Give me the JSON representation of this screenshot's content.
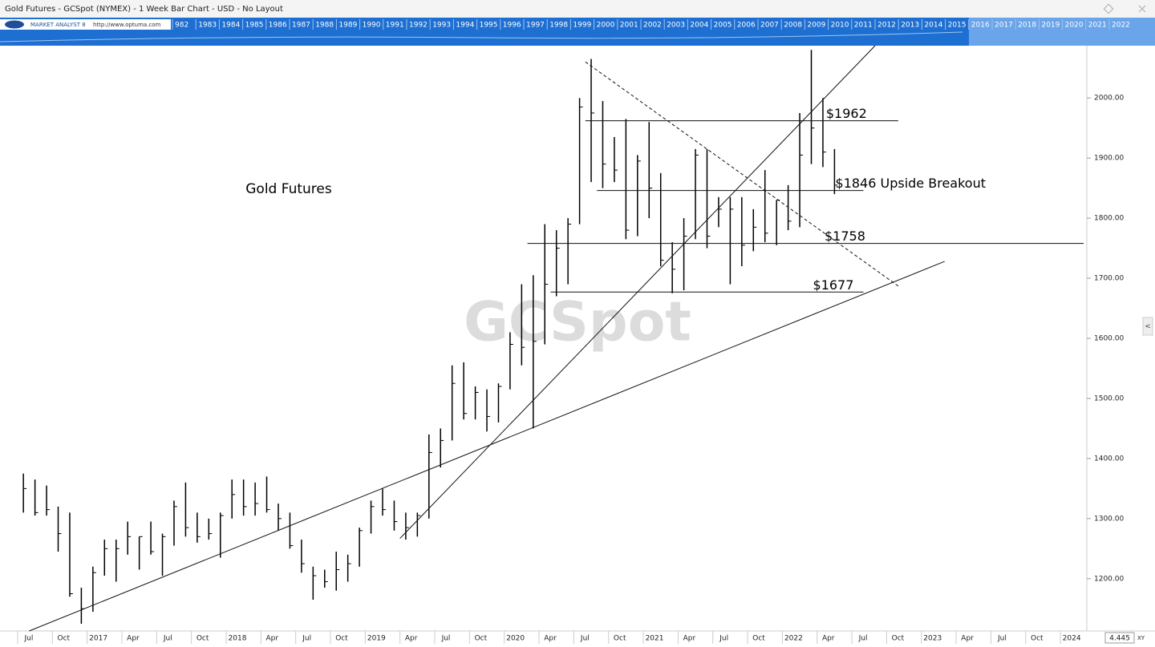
{
  "header": {
    "title": "Gold Futures - GCSpot (NYMEX) - 1 Week Bar Chart - USD - No Layout",
    "brand": "MARKET ANALYST 8",
    "url": "http://www.optuma.com",
    "years": [
      "982",
      "1983",
      "1984",
      "1985",
      "1986",
      "1987",
      "1988",
      "1989",
      "1990",
      "1991",
      "1992",
      "1993",
      "1994",
      "1995",
      "1996",
      "1997",
      "1998",
      "1999",
      "2000",
      "2001",
      "2002",
      "2003",
      "2004",
      "2005",
      "2006",
      "2007",
      "2008",
      "2009",
      "2010",
      "2011",
      "2012",
      "2013",
      "2014",
      "2015",
      "2016",
      "2017",
      "2018",
      "2019",
      "2020",
      "2021",
      "2022"
    ],
    "scale_value": "4.445",
    "scale_mode": "XY"
  },
  "chart_data": {
    "type": "ohlc",
    "title": "Gold Futures",
    "watermark": "GCSpot",
    "color": "#000000",
    "x": [
      "2016-07",
      "2016-08",
      "2016-09",
      "2016-10",
      "2016-11",
      "2016-12",
      "2017-01",
      "2017-02",
      "2017-03",
      "2017-04",
      "2017-05",
      "2017-06",
      "2017-07",
      "2017-08",
      "2017-09",
      "2017-10",
      "2017-11",
      "2017-12",
      "2018-01",
      "2018-02",
      "2018-03",
      "2018-04",
      "2018-05",
      "2018-06",
      "2018-07",
      "2018-08",
      "2018-09",
      "2018-10",
      "2018-11",
      "2018-12",
      "2019-01",
      "2019-02",
      "2019-03",
      "2019-04",
      "2019-05",
      "2019-06",
      "2019-07",
      "2019-08",
      "2019-09",
      "2019-10",
      "2019-11",
      "2019-12",
      "2020-01",
      "2020-02",
      "2020-03",
      "2020-04",
      "2020-05",
      "2020-06",
      "2020-07",
      "2020-08",
      "2020-09",
      "2020-10",
      "2020-11",
      "2020-12",
      "2021-01",
      "2021-02",
      "2021-03",
      "2021-04",
      "2021-05",
      "2021-06",
      "2021-07",
      "2021-08",
      "2021-09",
      "2021-10",
      "2021-11",
      "2021-12",
      "2022-01",
      "2022-02",
      "2022-03",
      "2022-04",
      "2022-05"
    ],
    "high": [
      1375,
      1365,
      1355,
      1320,
      1310,
      1185,
      1220,
      1265,
      1265,
      1295,
      1270,
      1295,
      1275,
      1330,
      1360,
      1310,
      1300,
      1310,
      1365,
      1365,
      1360,
      1370,
      1325,
      1310,
      1265,
      1220,
      1215,
      1245,
      1240,
      1285,
      1330,
      1350,
      1330,
      1310,
      1310,
      1440,
      1450,
      1555,
      1560,
      1520,
      1515,
      1525,
      1610,
      1690,
      1705,
      1790,
      1780,
      1800,
      2000,
      2065,
      1995,
      1935,
      1965,
      1905,
      1960,
      1875,
      1760,
      1800,
      1915,
      1915,
      1835,
      1835,
      1835,
      1815,
      1880,
      1830,
      1855,
      1975,
      2080,
      2000,
      1915
    ],
    "low": [
      1310,
      1305,
      1305,
      1245,
      1170,
      1125,
      1145,
      1205,
      1195,
      1240,
      1215,
      1240,
      1205,
      1255,
      1270,
      1260,
      1265,
      1235,
      1300,
      1305,
      1305,
      1310,
      1280,
      1250,
      1210,
      1165,
      1185,
      1180,
      1195,
      1220,
      1275,
      1305,
      1280,
      1265,
      1270,
      1300,
      1385,
      1430,
      1465,
      1465,
      1445,
      1460,
      1515,
      1555,
      1450,
      1590,
      1670,
      1690,
      1790,
      1860,
      1850,
      1860,
      1765,
      1770,
      1800,
      1720,
      1675,
      1680,
      1765,
      1750,
      1785,
      1690,
      1720,
      1745,
      1760,
      1755,
      1780,
      1785,
      1890,
      1885,
      1840
    ],
    "close": [
      1350,
      1310,
      1315,
      1275,
      1175,
      1150,
      1210,
      1250,
      1250,
      1270,
      1270,
      1245,
      1270,
      1320,
      1285,
      1270,
      1275,
      1305,
      1340,
      1320,
      1325,
      1315,
      1300,
      1255,
      1225,
      1205,
      1195,
      1215,
      1225,
      1280,
      1320,
      1315,
      1295,
      1285,
      1305,
      1410,
      1430,
      1525,
      1475,
      1510,
      1470,
      1520,
      1590,
      1585,
      1595,
      1690,
      1750,
      1790,
      1985,
      1975,
      1890,
      1880,
      1780,
      1895,
      1850,
      1730,
      1715,
      1770,
      1905,
      1770,
      1815,
      1815,
      1755,
      1785,
      1775,
      1830,
      1795,
      1905,
      1950,
      1910,
      1855
    ],
    "levels": [
      {
        "label": "$1962",
        "value": 1962,
        "from": "2020-08",
        "to": "2022-11"
      },
      {
        "label": "$1846 Upside Breakout",
        "value": 1846,
        "from": "2020-09",
        "to": "2022-08"
      },
      {
        "label": "$1758",
        "value": 1758,
        "from": "2020-03",
        "to": "2024-03"
      },
      {
        "label": "$1677",
        "value": 1677,
        "from": "2020-05",
        "to": "2022-08"
      }
    ],
    "trendlines": [
      {
        "from": [
          "2016-08",
          1113
        ],
        "to": [
          "2023-03",
          1728
        ],
        "dashed": false
      },
      {
        "from": [
          "2019-04",
          1267
        ],
        "to": [
          "2022-09",
          2087
        ],
        "dashed": false
      },
      {
        "from": [
          "2020-08",
          2060
        ],
        "to": [
          "2022-11",
          1687
        ],
        "dashed": true
      }
    ],
    "xlim": [
      "2016-06",
      "2024-03"
    ],
    "xticks": [
      {
        "value": "2016-07",
        "label": "Jul"
      },
      {
        "value": "2016-10",
        "label": "Oct"
      },
      {
        "value": "2017-01",
        "label": "2017"
      },
      {
        "value": "2017-04",
        "label": "Apr"
      },
      {
        "value": "2017-07",
        "label": "Jul"
      },
      {
        "value": "2017-10",
        "label": "Oct"
      },
      {
        "value": "2018-01",
        "label": "2018"
      },
      {
        "value": "2018-04",
        "label": "Apr"
      },
      {
        "value": "2018-07",
        "label": "Jul"
      },
      {
        "value": "2018-10",
        "label": "Oct"
      },
      {
        "value": "2019-01",
        "label": "2019"
      },
      {
        "value": "2019-04",
        "label": "Apr"
      },
      {
        "value": "2019-07",
        "label": "Jul"
      },
      {
        "value": "2019-10",
        "label": "Oct"
      },
      {
        "value": "2020-01",
        "label": "2020"
      },
      {
        "value": "2020-04",
        "label": "Apr"
      },
      {
        "value": "2020-07",
        "label": "Jul"
      },
      {
        "value": "2020-10",
        "label": "Oct"
      },
      {
        "value": "2021-01",
        "label": "2021"
      },
      {
        "value": "2021-04",
        "label": "Apr"
      },
      {
        "value": "2021-07",
        "label": "Jul"
      },
      {
        "value": "2021-10",
        "label": "Oct"
      },
      {
        "value": "2022-01",
        "label": "2022"
      },
      {
        "value": "2022-04",
        "label": "Apr"
      },
      {
        "value": "2022-07",
        "label": "Jul"
      },
      {
        "value": "2022-10",
        "label": "Oct"
      },
      {
        "value": "2023-01",
        "label": "2023"
      },
      {
        "value": "2023-04",
        "label": "Apr"
      },
      {
        "value": "2023-07",
        "label": "Jul"
      },
      {
        "value": "2023-10",
        "label": "Oct"
      },
      {
        "value": "2024-01",
        "label": "2024"
      }
    ],
    "ylim": [
      1113,
      2087
    ],
    "yticks": [
      {
        "value": 1200,
        "label": "1200.00"
      },
      {
        "value": 1300,
        "label": "1300.00"
      },
      {
        "value": 1400,
        "label": "1400.00"
      },
      {
        "value": 1500,
        "label": "1500.00"
      },
      {
        "value": 1600,
        "label": "1600.00"
      },
      {
        "value": 1700,
        "label": "1700.00"
      },
      {
        "value": 1800,
        "label": "1800.00"
      },
      {
        "value": 1900,
        "label": "1900.00"
      },
      {
        "value": 2000,
        "label": "2000.00"
      }
    ]
  }
}
